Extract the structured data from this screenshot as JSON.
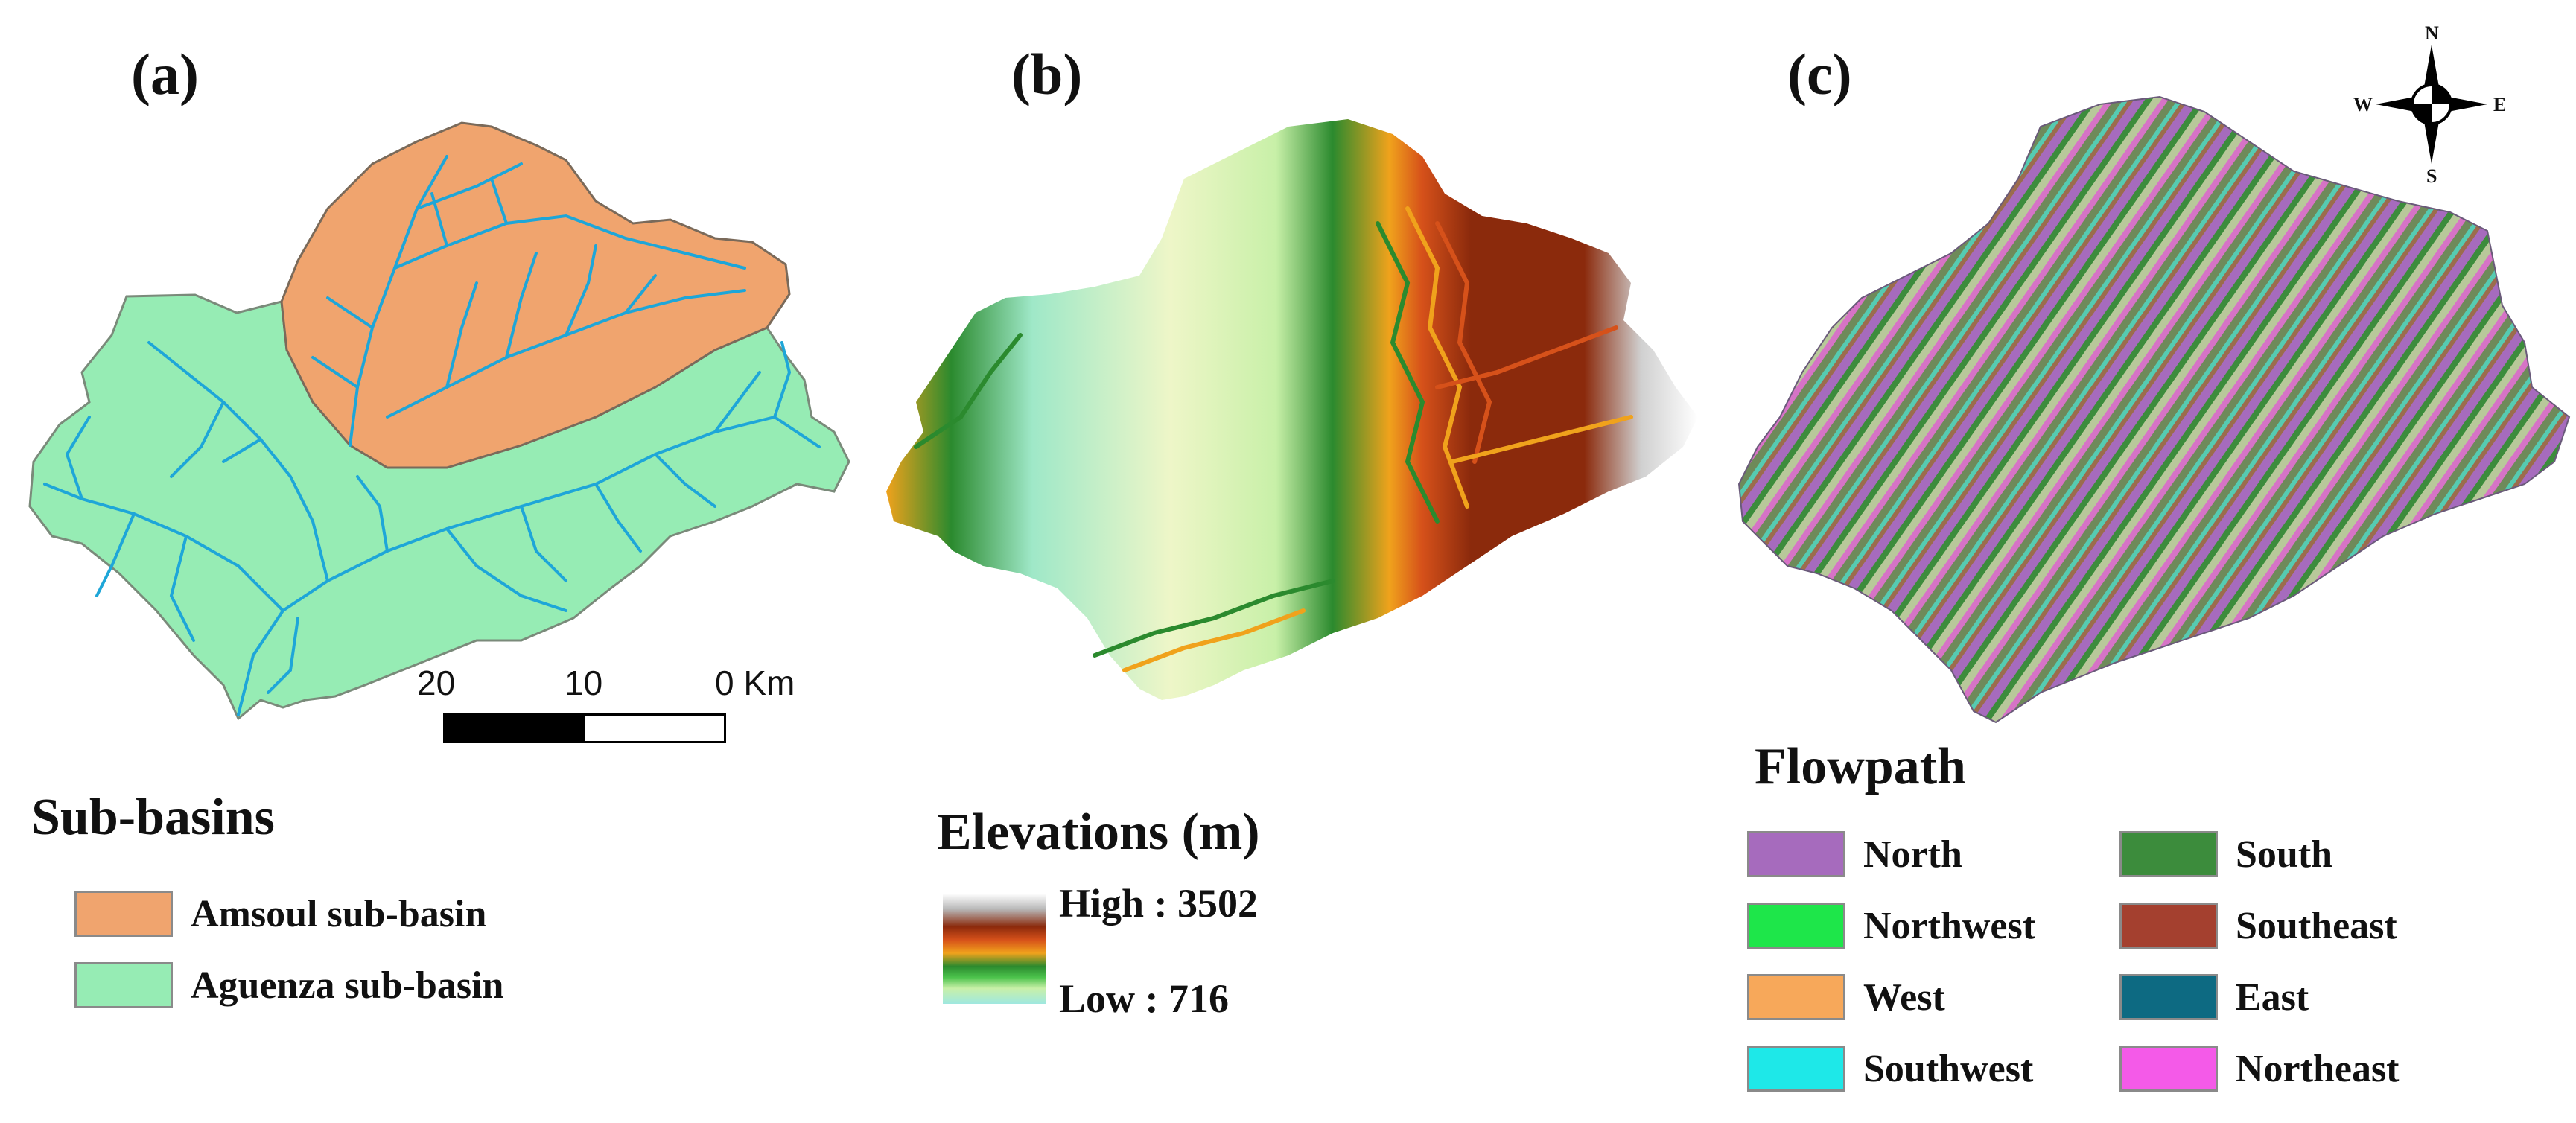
{
  "panels": {
    "a": {
      "label": "(a)",
      "legend_title": "Sub-basins",
      "legend": [
        {
          "name": "Amsoul sub-basin",
          "color": "#f0a46e"
        },
        {
          "name": "Aguenza sub-basin",
          "color": "#96ecb4"
        }
      ],
      "river_color": "#1ea6d8",
      "scalebar": {
        "ticks": [
          "20",
          "10",
          "0 Km"
        ]
      }
    },
    "b": {
      "label": "(b)",
      "legend_title": "Elevations (m)",
      "high_label": "High : 3502",
      "low_label": "Low : 716",
      "ramp_colors": [
        "#ffffff",
        "#8b2a0c",
        "#d6511a",
        "#f0a21c",
        "#2b8a2e",
        "#4cc34c",
        "#c8f0a8",
        "#9fe8e0"
      ]
    },
    "c": {
      "label": "(c)",
      "legend_title": "Flowpath",
      "compass": {
        "n": "N",
        "s": "S",
        "e": "E",
        "w": "W"
      },
      "legend": [
        {
          "name": "North",
          "color": "#a66bbd"
        },
        {
          "name": "Northwest",
          "color": "#1ee64a"
        },
        {
          "name": "West",
          "color": "#f7a85a"
        },
        {
          "name": "Southwest",
          "color": "#1ee8e8"
        },
        {
          "name": "South",
          "color": "#3c8c3c"
        },
        {
          "name": "Southeast",
          "color": "#a4402f"
        },
        {
          "name": "East",
          "color": "#0d6a82"
        },
        {
          "name": "Northeast",
          "color": "#f45ae8"
        }
      ]
    }
  }
}
